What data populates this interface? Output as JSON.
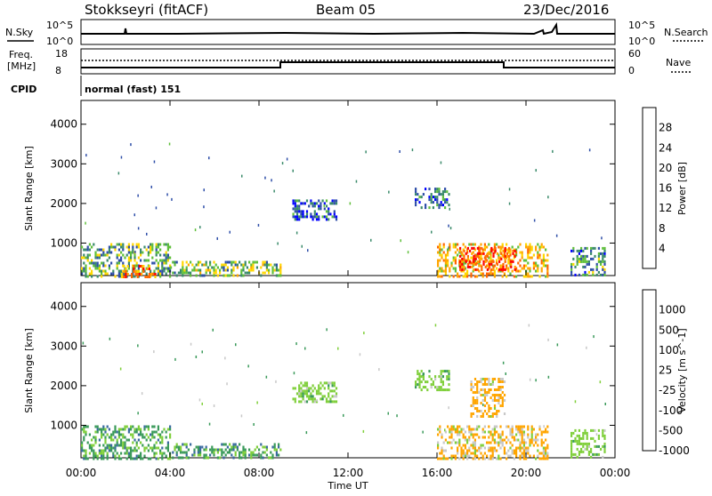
{
  "header": {
    "station": "Stokkseyri (fitACF)",
    "beam": "Beam 05",
    "date": "23/Dec/2016"
  },
  "top_panels": {
    "nsky_label": "N.Sky",
    "nsky_ticks": [
      "10^5",
      "10^0"
    ],
    "nsearch_label": "N.Search",
    "nsearch_ticks": [
      "10^5",
      "10^0"
    ],
    "freq_label_line1": "Freq.",
    "freq_label_line2": "[MHz]",
    "freq_ticks": [
      "18",
      "8"
    ],
    "nave_label": "Nave",
    "nave_ticks": [
      "60",
      "0"
    ],
    "cpid_label": "CPID",
    "cpid_text": "normal (fast) 151"
  },
  "chart_data": [
    {
      "type": "heatmap",
      "panel": "power",
      "ylabel": "Slant Range [km]",
      "xlabel": "",
      "y_ticks": [
        "1000",
        "2000",
        "3000",
        "4000"
      ],
      "ylim": [
        180,
        4600
      ],
      "xlim_hours": [
        0,
        24
      ],
      "colorbar_label": "Power [dB]",
      "colorbar_ticks": [
        "28",
        "24",
        "20",
        "16",
        "12",
        "8",
        "4"
      ],
      "colorbar_range": [
        0,
        32
      ],
      "colorbar_colors": [
        "#0000ff",
        "#2e4ea8",
        "#3a8a6a",
        "#5fbf3a",
        "#ffd700",
        "#ffa500",
        "#ff6600",
        "#ff0000"
      ],
      "patches": [
        {
          "t0": 0.0,
          "t1": 4.0,
          "r0": 180,
          "r1": 1000,
          "level": 12
        },
        {
          "t0": 1.8,
          "t1": 3.3,
          "r0": 180,
          "r1": 450,
          "level": 24
        },
        {
          "t0": 4.0,
          "t1": 9.0,
          "r0": 180,
          "r1": 550,
          "level": 14
        },
        {
          "t0": 9.5,
          "t1": 11.5,
          "r0": 1600,
          "r1": 2100,
          "level": 6
        },
        {
          "t0": 15.0,
          "t1": 16.5,
          "r0": 1900,
          "r1": 2400,
          "level": 8
        },
        {
          "t0": 16.0,
          "t1": 21.0,
          "r0": 180,
          "r1": 1000,
          "level": 20
        },
        {
          "t0": 17.0,
          "t1": 19.5,
          "r0": 300,
          "r1": 900,
          "level": 28
        },
        {
          "t0": 22.0,
          "t1": 23.5,
          "r0": 180,
          "r1": 900,
          "level": 10
        }
      ]
    },
    {
      "type": "heatmap",
      "panel": "velocity",
      "ylabel": "Slant Range [km]",
      "xlabel": "Time UT",
      "x_ticks": [
        "00:00",
        "04:00",
        "08:00",
        "12:00",
        "16:00",
        "20:00",
        "00:00"
      ],
      "y_ticks": [
        "1000",
        "2000",
        "3000",
        "4000"
      ],
      "ylim": [
        180,
        4600
      ],
      "xlim_hours": [
        0,
        24
      ],
      "colorbar_label": "Velocity [m s^-1]",
      "colorbar_ticks": [
        "1000",
        "500",
        "100",
        "25",
        "-25",
        "-100",
        "-500",
        "-1000"
      ],
      "colorbar_colors": [
        "#1f3fbf",
        "#3a6aa0",
        "#3a9a5a",
        "#7fcf3a",
        "#c8c8c8",
        "#ffa500",
        "#ff6a00",
        "#ff0000"
      ],
      "patches": [
        {
          "t0": 0.0,
          "t1": 4.0,
          "r0": 180,
          "r1": 1000,
          "level": 50
        },
        {
          "t0": 4.0,
          "t1": 9.0,
          "r0": 180,
          "r1": 550,
          "level": 60
        },
        {
          "t0": 9.5,
          "t1": 11.5,
          "r0": 1600,
          "r1": 2100,
          "level": 0
        },
        {
          "t0": 15.0,
          "t1": 16.5,
          "r0": 1900,
          "r1": 2400,
          "level": 0
        },
        {
          "t0": 16.0,
          "t1": 21.0,
          "r0": 180,
          "r1": 1000,
          "level": -120
        },
        {
          "t0": 17.5,
          "t1": 19.0,
          "r0": 1200,
          "r1": 2200,
          "level": -150
        },
        {
          "t0": 22.0,
          "t1": 23.5,
          "r0": 180,
          "r1": 900,
          "level": 0
        }
      ]
    }
  ]
}
